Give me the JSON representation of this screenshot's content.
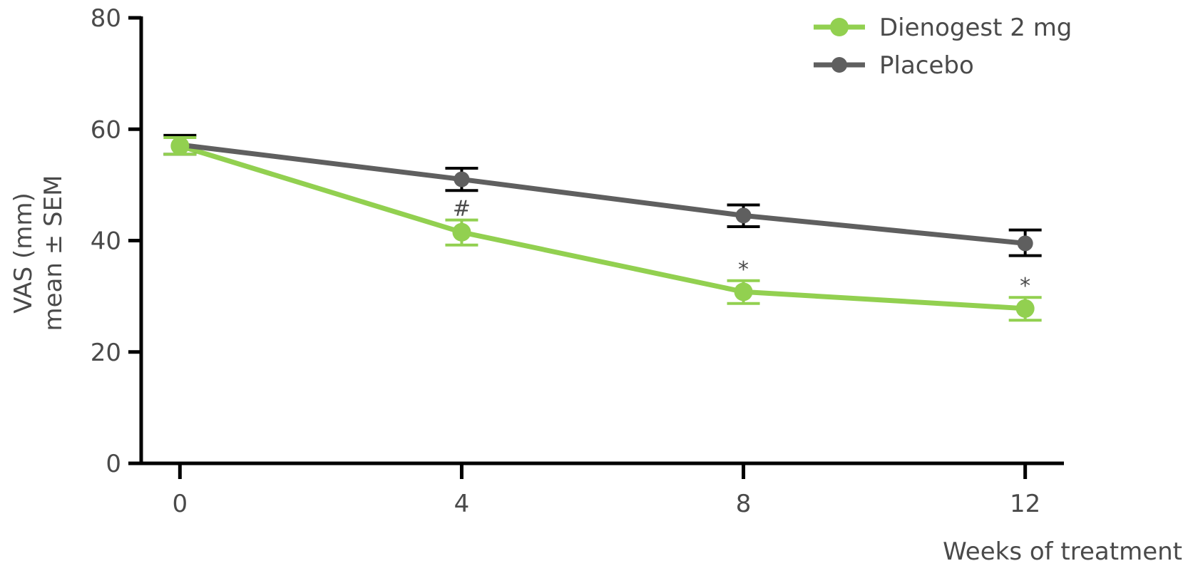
{
  "chart_data": {
    "type": "line",
    "title": "",
    "xlabel": "Weeks of treatment",
    "ylabel": [
      "VAS (mm)",
      "mean ± SEM"
    ],
    "x": [
      0,
      4,
      8,
      12
    ],
    "xticks": [
      "0",
      "4",
      "8",
      "12"
    ],
    "yticks": [
      "0",
      "20",
      "40",
      "60",
      "80"
    ],
    "xlim": [
      -0.55,
      12.55
    ],
    "ylim": [
      0,
      80
    ],
    "grid": false,
    "legend_position": "top-right",
    "series": [
      {
        "name": "Dienogest 2 mg",
        "color": "#92d050",
        "values": [
          57,
          41.5,
          30.8,
          27.8
        ],
        "sem_low": [
          55.5,
          39.2,
          28.7,
          25.7
        ],
        "sem_high": [
          58.5,
          43.7,
          32.8,
          29.8
        ],
        "annotations": [
          "",
          "#",
          "*",
          "*"
        ]
      },
      {
        "name": "Placebo",
        "color": "#5f5f5f",
        "values": [
          57.2,
          51,
          44.5,
          39.5
        ],
        "sem_low": [
          55.5,
          49,
          42.5,
          37.3
        ],
        "sem_high": [
          58.9,
          53,
          46.4,
          41.9
        ],
        "error_color": "#000000"
      }
    ]
  }
}
